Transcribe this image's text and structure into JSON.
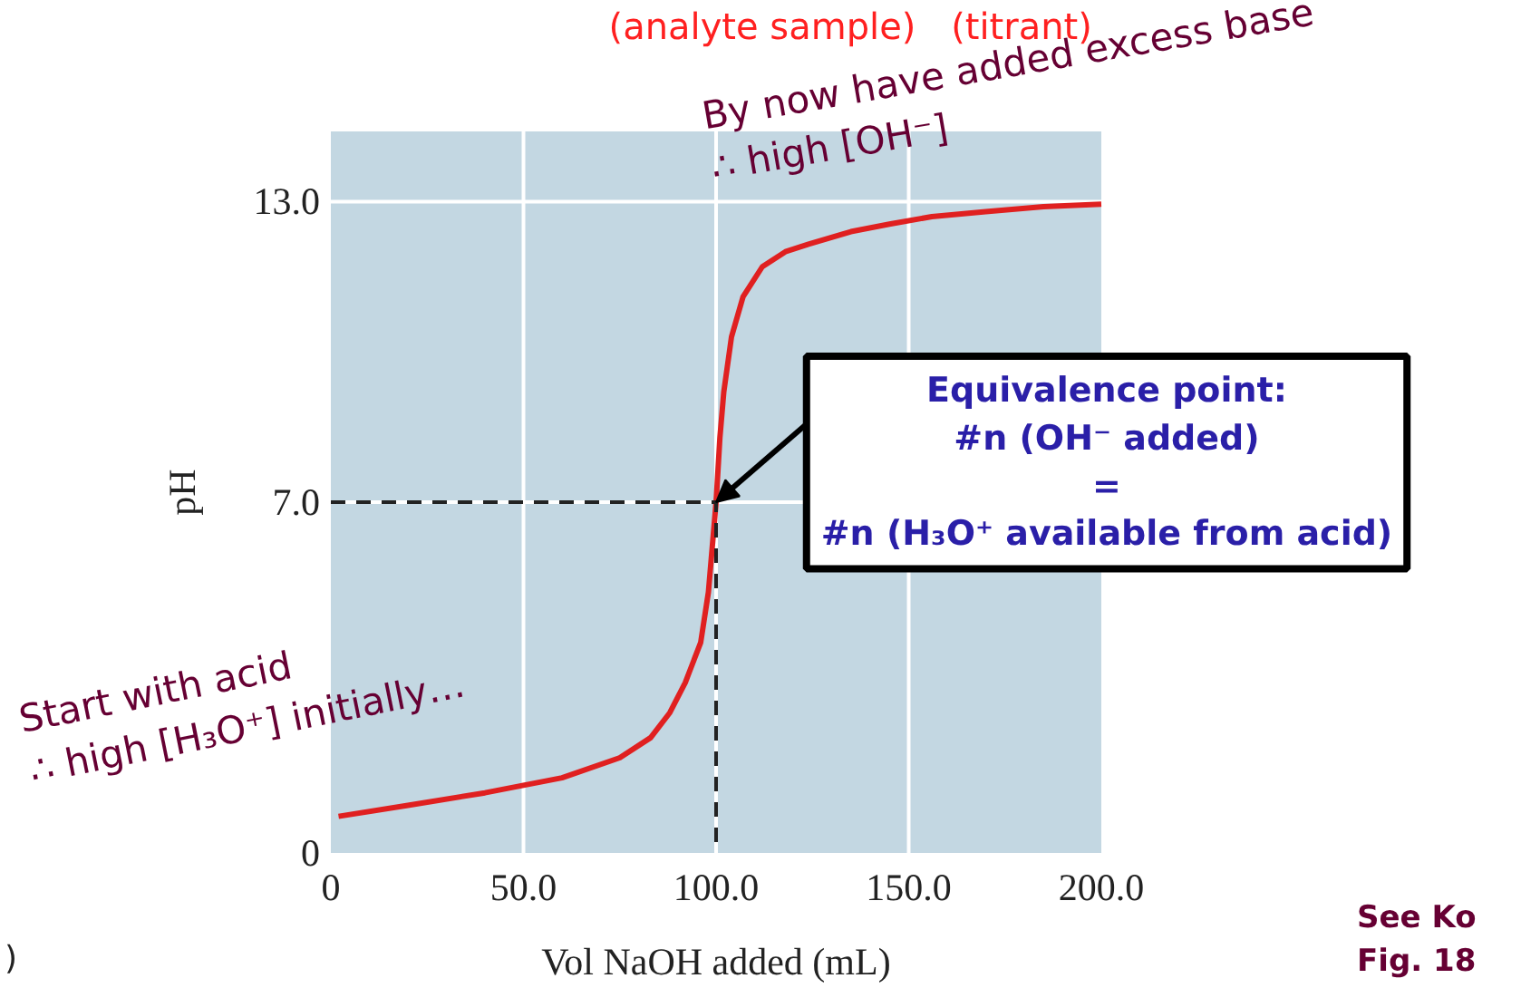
{
  "chart_data": {
    "type": "line",
    "xlabel": "Vol NaOH added (mL)",
    "ylabel": "pH",
    "xlim": [
      0,
      200
    ],
    "ylim": [
      0,
      14.4
    ],
    "xticks": [
      0,
      {
        "value": 50,
        "label": "50.0"
      },
      {
        "value": 100,
        "label": "100.0"
      },
      {
        "value": 150,
        "label": "150.0"
      },
      {
        "value": 200,
        "label": "200.0"
      }
    ],
    "yticks": [
      0,
      {
        "value": 7,
        "label": "7.0"
      },
      {
        "value": 13,
        "label": "13.0"
      }
    ],
    "grid": true,
    "series": [
      {
        "color": "#e02020",
        "x": [
          2,
          20,
          40,
          50,
          60,
          75,
          83,
          88,
          92,
          96,
          98,
          100,
          101,
          102,
          104,
          107,
          112,
          118,
          124,
          135,
          145,
          156,
          170,
          185,
          200
        ],
        "values": [
          0.73,
          0.95,
          1.2,
          1.35,
          1.5,
          1.9,
          2.3,
          2.8,
          3.4,
          4.2,
          5.2,
          7.0,
          8.3,
          9.2,
          10.3,
          11.1,
          11.7,
          12.0,
          12.15,
          12.4,
          12.55,
          12.7,
          12.8,
          12.9,
          12.95
        ]
      },
      {
        "color": "#222222",
        "line_style": "dashed",
        "x": [
          0,
          100,
          100
        ],
        "values": [
          7,
          7,
          0
        ]
      }
    ],
    "annotations": [
      "(analyte sample)",
      "(titrant)",
      "By now have added excess base\n∴ high [OH⁻]",
      "Start with acid\n∴ high [H₃O⁺] initially…",
      {
        "text": "Equivalence point:\n#n (OH⁻ added)\n=\n#n (H₃O⁺ available from acid)",
        "x": 100,
        "y": 7
      },
      "See Ko\nFig. 18",
      ")"
    ]
  }
}
